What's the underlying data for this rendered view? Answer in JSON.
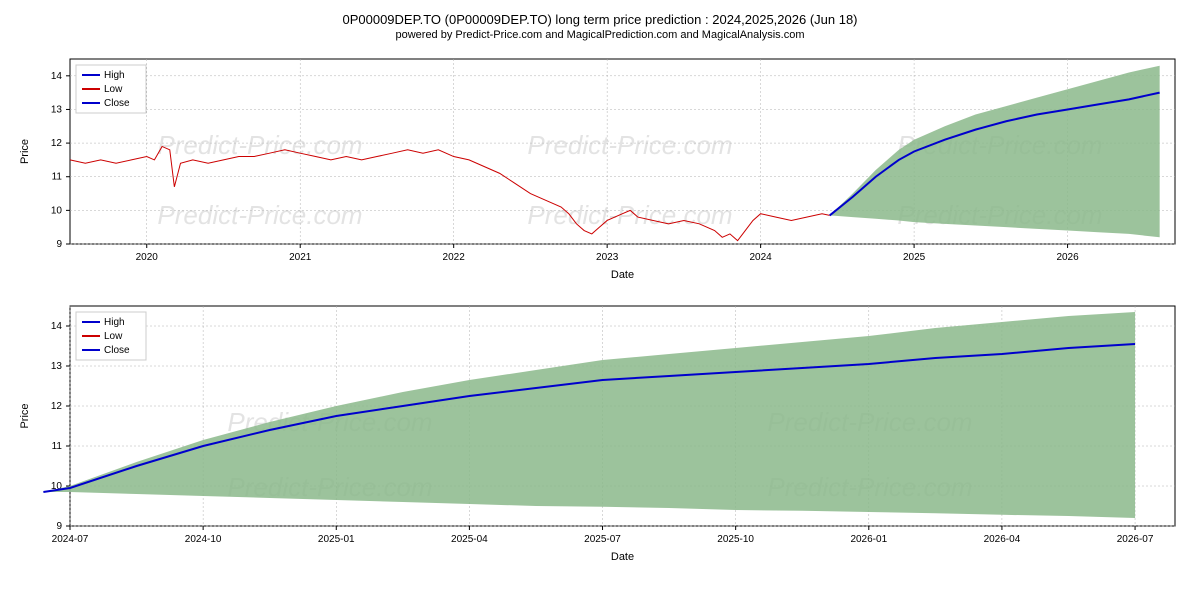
{
  "title": "0P00009DEP.TO (0P00009DEP.TO) long term price prediction : 2024,2025,2026 (Jun 18)",
  "subtitle": "powered by Predict-Price.com and MagicalPrediction.com and MagicalAnalysis.com",
  "watermark_text": "Predict-Price.com",
  "legend": {
    "items": [
      {
        "label": "High",
        "color": "#0000cc"
      },
      {
        "label": "Low",
        "color": "#cc0000"
      },
      {
        "label": "Close",
        "color": "#0000cc"
      }
    ]
  },
  "chart1": {
    "type": "line_area",
    "xlabel": "Date",
    "ylabel": "Price",
    "ylim": [
      9,
      14.5
    ],
    "yticks": [
      9,
      10,
      11,
      12,
      13,
      14
    ],
    "xticks": [
      "2020",
      "2021",
      "2022",
      "2023",
      "2024",
      "2025",
      "2026"
    ],
    "xrange": [
      2019.5,
      2026.7
    ],
    "background": "#ffffff",
    "grid_color": "#b0b0b0",
    "grid_width": 0.5,
    "historical_low": {
      "color": "#cc0000",
      "width": 1,
      "data": [
        [
          2019.5,
          11.5
        ],
        [
          2019.6,
          11.4
        ],
        [
          2019.7,
          11.5
        ],
        [
          2019.8,
          11.4
        ],
        [
          2019.9,
          11.5
        ],
        [
          2020.0,
          11.6
        ],
        [
          2020.05,
          11.5
        ],
        [
          2020.1,
          11.9
        ],
        [
          2020.15,
          11.8
        ],
        [
          2020.18,
          10.7
        ],
        [
          2020.22,
          11.4
        ],
        [
          2020.3,
          11.5
        ],
        [
          2020.4,
          11.4
        ],
        [
          2020.5,
          11.5
        ],
        [
          2020.6,
          11.6
        ],
        [
          2020.7,
          11.6
        ],
        [
          2020.8,
          11.7
        ],
        [
          2020.9,
          11.8
        ],
        [
          2021.0,
          11.7
        ],
        [
          2021.1,
          11.6
        ],
        [
          2021.2,
          11.5
        ],
        [
          2021.3,
          11.6
        ],
        [
          2021.4,
          11.5
        ],
        [
          2021.5,
          11.6
        ],
        [
          2021.6,
          11.7
        ],
        [
          2021.7,
          11.8
        ],
        [
          2021.8,
          11.7
        ],
        [
          2021.9,
          11.8
        ],
        [
          2022.0,
          11.6
        ],
        [
          2022.1,
          11.5
        ],
        [
          2022.2,
          11.3
        ],
        [
          2022.3,
          11.1
        ],
        [
          2022.4,
          10.8
        ],
        [
          2022.5,
          10.5
        ],
        [
          2022.6,
          10.3
        ],
        [
          2022.7,
          10.1
        ],
        [
          2022.75,
          9.9
        ],
        [
          2022.8,
          9.6
        ],
        [
          2022.85,
          9.4
        ],
        [
          2022.9,
          9.3
        ],
        [
          2022.95,
          9.5
        ],
        [
          2023.0,
          9.7
        ],
        [
          2023.1,
          9.9
        ],
        [
          2023.15,
          10.0
        ],
        [
          2023.2,
          9.8
        ],
        [
          2023.3,
          9.7
        ],
        [
          2023.4,
          9.6
        ],
        [
          2023.5,
          9.7
        ],
        [
          2023.6,
          9.6
        ],
        [
          2023.7,
          9.4
        ],
        [
          2023.75,
          9.2
        ],
        [
          2023.8,
          9.3
        ],
        [
          2023.85,
          9.1
        ],
        [
          2023.9,
          9.4
        ],
        [
          2023.95,
          9.7
        ],
        [
          2024.0,
          9.9
        ],
        [
          2024.1,
          9.8
        ],
        [
          2024.2,
          9.7
        ],
        [
          2024.3,
          9.8
        ],
        [
          2024.4,
          9.9
        ],
        [
          2024.45,
          9.85
        ]
      ]
    },
    "forecast_close": {
      "color": "#0000cc",
      "width": 2,
      "data": [
        [
          2024.45,
          9.85
        ],
        [
          2024.6,
          10.4
        ],
        [
          2024.75,
          11.0
        ],
        [
          2024.9,
          11.5
        ],
        [
          2025.0,
          11.75
        ],
        [
          2025.2,
          12.1
        ],
        [
          2025.4,
          12.4
        ],
        [
          2025.6,
          12.65
        ],
        [
          2025.8,
          12.85
        ],
        [
          2026.0,
          13.0
        ],
        [
          2026.2,
          13.15
        ],
        [
          2026.4,
          13.3
        ],
        [
          2026.6,
          13.5
        ]
      ]
    },
    "forecast_area": {
      "fill": "#8bb98b",
      "opacity": 0.85,
      "upper": [
        [
          2024.45,
          9.85
        ],
        [
          2024.6,
          10.5
        ],
        [
          2024.75,
          11.2
        ],
        [
          2024.9,
          11.8
        ],
        [
          2025.0,
          12.1
        ],
        [
          2025.2,
          12.5
        ],
        [
          2025.4,
          12.85
        ],
        [
          2025.6,
          13.1
        ],
        [
          2025.8,
          13.35
        ],
        [
          2026.0,
          13.6
        ],
        [
          2026.2,
          13.85
        ],
        [
          2026.4,
          14.1
        ],
        [
          2026.6,
          14.3
        ]
      ],
      "lower": [
        [
          2024.45,
          9.85
        ],
        [
          2024.6,
          9.8
        ],
        [
          2024.75,
          9.75
        ],
        [
          2024.9,
          9.7
        ],
        [
          2025.0,
          9.65
        ],
        [
          2025.2,
          9.6
        ],
        [
          2025.4,
          9.55
        ],
        [
          2025.6,
          9.5
        ],
        [
          2025.8,
          9.45
        ],
        [
          2026.0,
          9.4
        ],
        [
          2026.2,
          9.35
        ],
        [
          2026.4,
          9.3
        ],
        [
          2026.6,
          9.2
        ]
      ]
    }
  },
  "chart2": {
    "type": "line_area",
    "xlabel": "Date",
    "ylabel": "Price",
    "ylim": [
      9,
      14.5
    ],
    "yticks": [
      9,
      10,
      11,
      12,
      13,
      14
    ],
    "xticks": [
      "2024-07",
      "2024-10",
      "2025-01",
      "2025-04",
      "2025-07",
      "2025-10",
      "2026-01",
      "2026-04",
      "2026-07"
    ],
    "xrange": [
      0,
      8.3
    ],
    "background": "#ffffff",
    "grid_color": "#b0b0b0",
    "grid_width": 0.5,
    "forecast_close": {
      "color": "#0000cc",
      "width": 2,
      "data": [
        [
          -0.2,
          9.85
        ],
        [
          0,
          9.95
        ],
        [
          0.5,
          10.5
        ],
        [
          1,
          11.0
        ],
        [
          1.5,
          11.4
        ],
        [
          2,
          11.75
        ],
        [
          2.5,
          12.0
        ],
        [
          3,
          12.25
        ],
        [
          3.5,
          12.45
        ],
        [
          4,
          12.65
        ],
        [
          4.5,
          12.75
        ],
        [
          5,
          12.85
        ],
        [
          5.5,
          12.95
        ],
        [
          6,
          13.05
        ],
        [
          6.5,
          13.2
        ],
        [
          7,
          13.3
        ],
        [
          7.5,
          13.45
        ],
        [
          8,
          13.55
        ]
      ]
    },
    "forecast_area": {
      "fill": "#8bb98b",
      "opacity": 0.85,
      "upper": [
        [
          -0.2,
          9.85
        ],
        [
          0,
          10.0
        ],
        [
          0.5,
          10.6
        ],
        [
          1,
          11.15
        ],
        [
          1.5,
          11.6
        ],
        [
          2,
          12.0
        ],
        [
          2.5,
          12.35
        ],
        [
          3,
          12.65
        ],
        [
          3.5,
          12.9
        ],
        [
          4,
          13.15
        ],
        [
          4.5,
          13.3
        ],
        [
          5,
          13.45
        ],
        [
          5.5,
          13.6
        ],
        [
          6,
          13.75
        ],
        [
          6.5,
          13.95
        ],
        [
          7,
          14.1
        ],
        [
          7.5,
          14.25
        ],
        [
          8,
          14.35
        ]
      ],
      "lower": [
        [
          -0.2,
          9.85
        ],
        [
          0,
          9.85
        ],
        [
          0.5,
          9.8
        ],
        [
          1,
          9.75
        ],
        [
          1.5,
          9.7
        ],
        [
          2,
          9.65
        ],
        [
          2.5,
          9.6
        ],
        [
          3,
          9.55
        ],
        [
          3.5,
          9.5
        ],
        [
          4,
          9.48
        ],
        [
          4.5,
          9.45
        ],
        [
          5,
          9.4
        ],
        [
          5.5,
          9.38
        ],
        [
          6,
          9.35
        ],
        [
          6.5,
          9.32
        ],
        [
          7,
          9.28
        ],
        [
          7.5,
          9.25
        ],
        [
          8,
          9.2
        ]
      ]
    }
  }
}
